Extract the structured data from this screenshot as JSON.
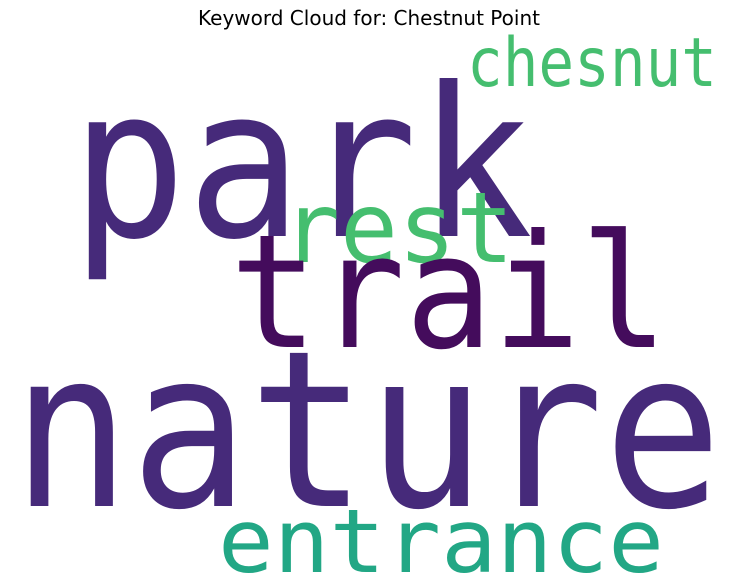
{
  "title": "Keyword Cloud for: Chestnut Point",
  "words": [
    {
      "text": "park",
      "color": "#462a7a"
    },
    {
      "text": "chesnut",
      "color": "#45be6f"
    },
    {
      "text": "rest",
      "color": "#45be6f"
    },
    {
      "text": "trail",
      "color": "#440c5c"
    },
    {
      "text": "nature",
      "color": "#462a7a"
    },
    {
      "text": "entrance",
      "color": "#22a785"
    }
  ]
}
